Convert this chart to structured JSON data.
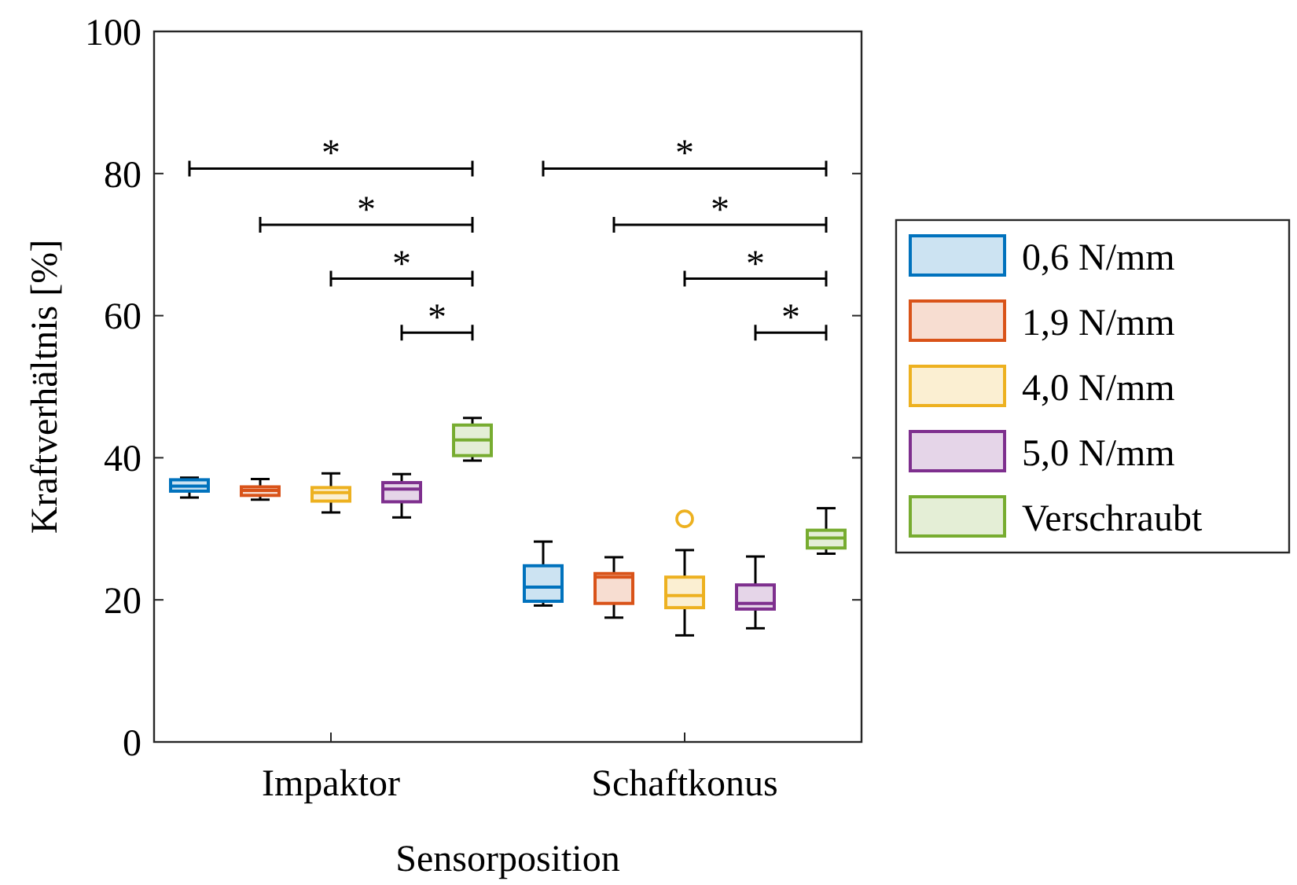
{
  "chart_data": {
    "type": "box",
    "xlabel": "Sensorposition",
    "ylabel": "Kraftverhältnis [%]",
    "categories": [
      "Impaktor",
      "Schaftkonus"
    ],
    "ylim": [
      0,
      100
    ],
    "yticks": [
      0,
      20,
      40,
      60,
      80,
      100
    ],
    "grid": false,
    "legend": "right",
    "series": [
      {
        "name": "0,6 N/mm",
        "color": "#0072bd",
        "boxes": [
          {
            "low": 34.4,
            "q1": 35.3,
            "median": 36.0,
            "q3": 36.9,
            "high": 37.2
          },
          {
            "low": 19.2,
            "q1": 19.8,
            "median": 21.8,
            "q3": 24.8,
            "high": 28.2
          }
        ]
      },
      {
        "name": "1,9 N/mm",
        "color": "#d95319",
        "boxes": [
          {
            "low": 34.1,
            "q1": 34.7,
            "median": 35.4,
            "q3": 35.9,
            "high": 37.0
          },
          {
            "low": 17.5,
            "q1": 19.5,
            "median": 23.2,
            "q3": 23.7,
            "high": 26.0
          }
        ]
      },
      {
        "name": "4,0 N/mm",
        "color": "#edb120",
        "boxes": [
          {
            "low": 32.3,
            "q1": 33.9,
            "median": 35.1,
            "q3": 35.8,
            "high": 37.8
          },
          {
            "low": 15.0,
            "q1": 18.9,
            "median": 20.6,
            "q3": 23.2,
            "high": 27.0,
            "outliers": [
              31.4
            ]
          }
        ]
      },
      {
        "name": "5,0 N/mm",
        "color": "#7e2f8e",
        "boxes": [
          {
            "low": 31.6,
            "q1": 33.8,
            "median": 35.6,
            "q3": 36.5,
            "high": 37.7
          },
          {
            "low": 16.0,
            "q1": 18.7,
            "median": 19.5,
            "q3": 22.1,
            "high": 26.1
          }
        ]
      },
      {
        "name": "Verschraubt",
        "color": "#77ac30",
        "boxes": [
          {
            "low": 39.6,
            "q1": 40.3,
            "median": 42.5,
            "q3": 44.6,
            "high": 45.6
          },
          {
            "low": 26.5,
            "q1": 27.3,
            "median": 28.7,
            "q3": 29.8,
            "high": 32.9
          }
        ]
      }
    ],
    "annotations": [
      "*",
      "*",
      "*",
      "*",
      "*",
      "*",
      "*",
      "*"
    ]
  }
}
